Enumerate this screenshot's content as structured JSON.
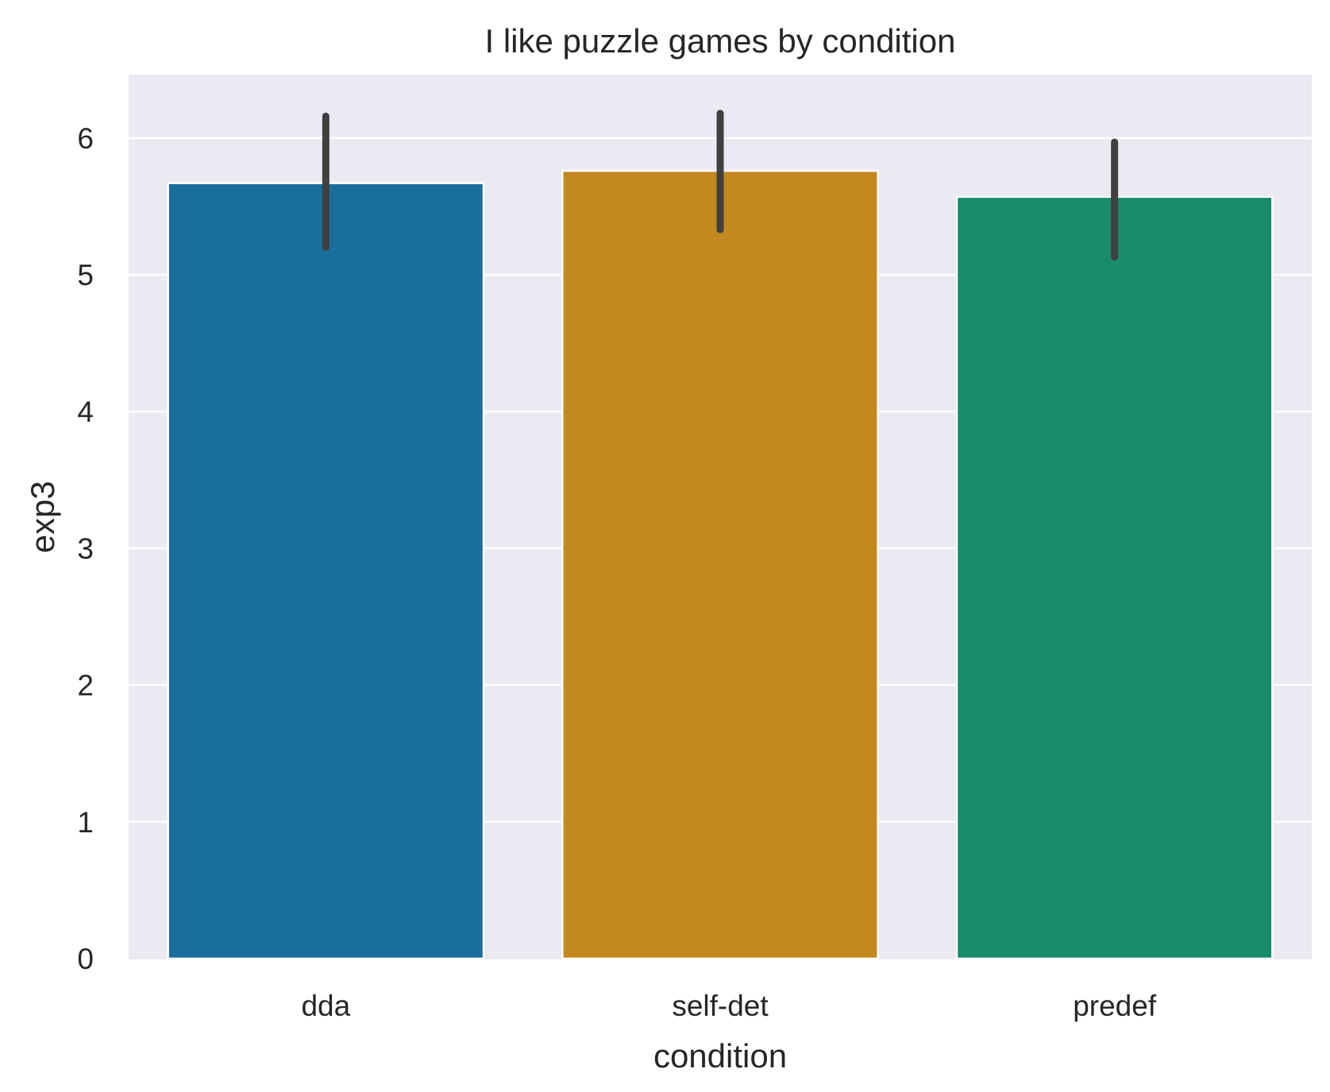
{
  "chart_data": {
    "type": "bar",
    "title": "I like puzzle games by condition",
    "xlabel": "condition",
    "ylabel": "exp3",
    "categories": [
      "dda",
      "self-det",
      "predef"
    ],
    "values": [
      5.67,
      5.76,
      5.57
    ],
    "error_bars": [
      [
        5.2,
        6.16
      ],
      [
        5.33,
        6.18
      ],
      [
        5.13,
        5.97
      ]
    ],
    "ylim": [
      0,
      6.45
    ],
    "yticks": [
      0,
      1,
      2,
      3,
      4,
      5,
      6
    ],
    "grid": true,
    "colors": [
      "#1a6e9c",
      "#c38820",
      "#178b6a"
    ],
    "errorbar_color": "#404040",
    "plot_background": "#eaeaf2"
  }
}
